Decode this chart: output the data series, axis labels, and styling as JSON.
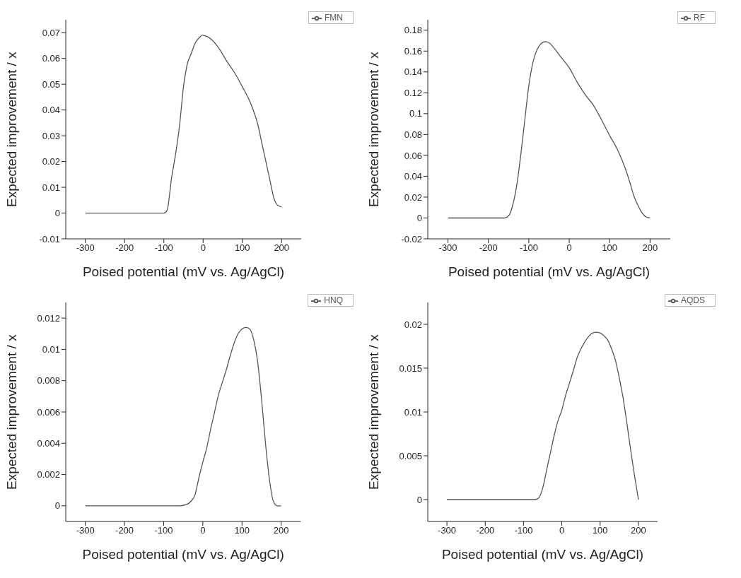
{
  "chart_data": [
    {
      "type": "line",
      "xlabel": "Poised potential (mV vs. Ag/AgCl)",
      "ylabel": "Expected improvement / x",
      "legend": "top right",
      "marker": "none",
      "xlim": [
        -350,
        250
      ],
      "xticks": [
        -300,
        -200,
        -100,
        0,
        100,
        200
      ],
      "ylim": [
        -0.01,
        0.075
      ],
      "yticks": [
        -0.01,
        0,
        0.01,
        0.02,
        0.03,
        0.04,
        0.05,
        0.06,
        0.07
      ],
      "x": [
        -300,
        -150,
        -100,
        -92,
        -80,
        -70,
        -60,
        -50,
        -40,
        -30,
        -20,
        -10,
        -2,
        10,
        20,
        40,
        60,
        80,
        100,
        120,
        140,
        150,
        160,
        170,
        180,
        190,
        200
      ],
      "series": [
        {
          "name": "FMN",
          "color": "#555555",
          "values": [
            0,
            0,
            0,
            0.001,
            0.014,
            0.023,
            0.034,
            0.049,
            0.058,
            0.062,
            0.066,
            0.068,
            0.069,
            0.0685,
            0.0675,
            0.064,
            0.059,
            0.0545,
            0.049,
            0.043,
            0.034,
            0.027,
            0.02,
            0.013,
            0.006,
            0.003,
            0.0024
          ]
        }
      ]
    },
    {
      "type": "line",
      "xlabel": "Poised potential (mV vs. Ag/AgCl)",
      "ylabel": "Expected improvement / x",
      "legend": "top right",
      "marker": "none",
      "xlim": [
        -350,
        250
      ],
      "xticks": [
        -300,
        -200,
        -100,
        0,
        100,
        200
      ],
      "ylim": [
        -0.02,
        0.19
      ],
      "yticks": [
        -0.02,
        0,
        0.02,
        0.04,
        0.06,
        0.08,
        0.1,
        0.12,
        0.14,
        0.16,
        0.18
      ],
      "x": [
        -300,
        -160,
        -150,
        -140,
        -130,
        -120,
        -110,
        -100,
        -90,
        -80,
        -70,
        -60,
        -50,
        -40,
        -20,
        0,
        20,
        40,
        60,
        80,
        100,
        120,
        140,
        150,
        160,
        170,
        180,
        190,
        200
      ],
      "series": [
        {
          "name": "RF",
          "color": "#555555",
          "values": [
            0,
            0,
            0.002,
            0.012,
            0.031,
            0.06,
            0.094,
            0.127,
            0.149,
            0.161,
            0.167,
            0.169,
            0.168,
            0.164,
            0.154,
            0.144,
            0.13,
            0.118,
            0.108,
            0.094,
            0.079,
            0.065,
            0.046,
            0.034,
            0.021,
            0.012,
            0.005,
            0.001,
            0
          ]
        }
      ]
    },
    {
      "type": "line",
      "xlabel": "Poised potential (mV vs. Ag/AgCl)",
      "ylabel": "Expected improvement / x",
      "legend": "top right",
      "marker": "none",
      "xlim": [
        -350,
        250
      ],
      "xticks": [
        -300,
        -200,
        -100,
        0,
        100,
        200
      ],
      "ylim": [
        -0.001,
        0.013
      ],
      "yticks": [
        0,
        0.002,
        0.004,
        0.006,
        0.008,
        0.01,
        0.012
      ],
      "x": [
        -300,
        -60,
        -40,
        -30,
        -20,
        -10,
        0,
        10,
        20,
        30,
        40,
        50,
        60,
        70,
        80,
        90,
        100,
        110,
        120,
        130,
        140,
        150,
        160,
        170,
        180,
        190,
        200
      ],
      "series": [
        {
          "name": "HNQ",
          "color": "#555555",
          "values": [
            0,
            0,
            0.0001,
            0.0003,
            0.0007,
            0.0018,
            0.0028,
            0.0037,
            0.0049,
            0.006,
            0.0071,
            0.0079,
            0.0087,
            0.0096,
            0.0104,
            0.011,
            0.0113,
            0.0114,
            0.0113,
            0.0106,
            0.0092,
            0.0068,
            0.004,
            0.0017,
            0.0003,
            0,
            0
          ]
        }
      ]
    },
    {
      "type": "line",
      "xlabel": "Poised potential (mV vs. Ag/AgCl)",
      "ylabel": "Expected improvement / x",
      "legend": "top right",
      "marker": "none",
      "xlim": [
        -350,
        250
      ],
      "xticks": [
        -300,
        -200,
        -100,
        0,
        100,
        200
      ],
      "ylim": [
        -0.0025,
        0.0225
      ],
      "yticks": [
        0,
        0.005,
        0.01,
        0.015,
        0.02
      ],
      "x": [
        -300,
        -70,
        -60,
        -50,
        -40,
        -30,
        -20,
        -10,
        0,
        10,
        20,
        30,
        40,
        50,
        60,
        70,
        80,
        90,
        100,
        110,
        120,
        130,
        140,
        150,
        160,
        170,
        180,
        190,
        200
      ],
      "series": [
        {
          "name": "AQDS",
          "color": "#555555",
          "values": [
            0,
            0,
            0.0002,
            0.0013,
            0.0033,
            0.0053,
            0.0073,
            0.009,
            0.0102,
            0.0119,
            0.0133,
            0.0147,
            0.0162,
            0.0172,
            0.018,
            0.0186,
            0.019,
            0.0191,
            0.019,
            0.0187,
            0.0182,
            0.0172,
            0.0159,
            0.0139,
            0.0116,
            0.0087,
            0.0056,
            0.0027,
            0
          ]
        }
      ]
    }
  ]
}
